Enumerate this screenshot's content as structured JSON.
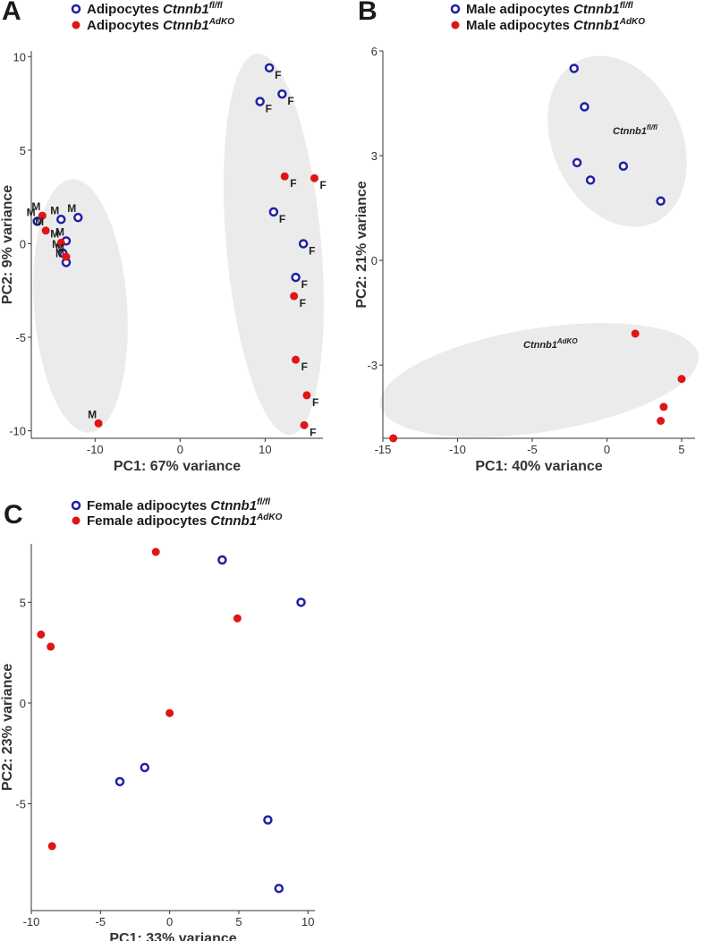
{
  "colors": {
    "wt": "#1f1fa8",
    "ko": "#e01515",
    "ellipse": "#ebebeb",
    "axis": "#333333"
  },
  "chart_data": [
    {
      "panel": "A",
      "type": "scatter",
      "xlabel": "PC1: 67% variance",
      "ylabel": "PC2: 9% variance",
      "xlim": [
        -17.5,
        16.8
      ],
      "ylim": [
        -10.4,
        10.3
      ],
      "xticks": [
        "-10",
        "0",
        "10"
      ],
      "yticks": [
        "10",
        "5",
        "0",
        "-5",
        "-10"
      ],
      "legend": [
        {
          "prefix": "Adipocytes ",
          "gene": "Ctnnb1",
          "sup": "fl/fl",
          "marker": "open"
        },
        {
          "prefix": "Adipocytes ",
          "gene": "Ctnnb1",
          "sup": "AdKO",
          "marker": "filled"
        }
      ],
      "series": [
        {
          "name": "Adipocytes Ctnnb1 fl/fl",
          "marker": "open",
          "points": [
            {
              "x": 10.5,
              "y": 9.4,
              "label": "F"
            },
            {
              "x": 12.0,
              "y": 8.0,
              "label": "F"
            },
            {
              "x": 9.4,
              "y": 7.6,
              "label": "F"
            },
            {
              "x": 11.0,
              "y": 1.7,
              "label": "F"
            },
            {
              "x": 14.5,
              "y": 0.0,
              "label": "F"
            },
            {
              "x": 13.6,
              "y": -1.8,
              "label": "F"
            },
            {
              "x": -14.0,
              "y": 1.3,
              "label": "M"
            },
            {
              "x": -12.0,
              "y": 1.4,
              "label": "M"
            },
            {
              "x": -16.8,
              "y": 1.2,
              "label": "M"
            },
            {
              "x": -13.4,
              "y": 0.15,
              "label": "M"
            },
            {
              "x": -13.8,
              "y": -0.5,
              "label": "M"
            },
            {
              "x": -13.4,
              "y": -1.0,
              "label": "M"
            }
          ]
        },
        {
          "name": "Adipocytes Ctnnb1 AdKO",
          "marker": "filled",
          "points": [
            {
              "x": 12.3,
              "y": 3.6,
              "label": "F"
            },
            {
              "x": 15.8,
              "y": 3.5,
              "label": "F"
            },
            {
              "x": 13.4,
              "y": -2.8,
              "label": "F"
            },
            {
              "x": 13.6,
              "y": -6.2,
              "label": "F"
            },
            {
              "x": 14.9,
              "y": -8.1,
              "label": "F"
            },
            {
              "x": 14.6,
              "y": -9.7,
              "label": "F"
            },
            {
              "x": -16.2,
              "y": 1.5,
              "label": "M"
            },
            {
              "x": -15.8,
              "y": 0.7,
              "label": "M"
            },
            {
              "x": -14.0,
              "y": 0.05,
              "label": "M"
            },
            {
              "x": -13.4,
              "y": -0.7,
              "label": "M"
            },
            {
              "x": -9.6,
              "y": -9.6,
              "label": "M"
            }
          ]
        }
      ]
    },
    {
      "panel": "B",
      "type": "scatter",
      "xlabel": "PC1: 40% variance",
      "ylabel": "PC2: 21% variance",
      "xlim": [
        -15.0,
        5.9
      ],
      "ylim": [
        -5.1,
        6.0
      ],
      "xticks": [
        "-15",
        "-10",
        "-5",
        "0",
        "5"
      ],
      "yticks": [
        "6",
        "3",
        "0",
        "-3"
      ],
      "legend": [
        {
          "prefix": "Male adipocytes ",
          "gene": "Ctnnb1",
          "sup": "fl/fl",
          "marker": "open"
        },
        {
          "prefix": "Male adipocytes ",
          "gene": "Ctnnb1",
          "sup": "AdKO",
          "marker": "filled"
        }
      ],
      "groups": [
        {
          "gene": "Ctnnb1",
          "sup": "fl/fl"
        },
        {
          "gene": "Ctnnb1",
          "sup": "AdKO"
        }
      ],
      "series": [
        {
          "name": "Male adipocytes Ctnnb1 fl/fl",
          "marker": "open",
          "points": [
            {
              "x": -2.2,
              "y": 5.5
            },
            {
              "x": -1.5,
              "y": 4.4
            },
            {
              "x": -2.0,
              "y": 2.8
            },
            {
              "x": -1.1,
              "y": 2.3
            },
            {
              "x": 1.1,
              "y": 2.7
            },
            {
              "x": 3.6,
              "y": 1.7
            }
          ]
        },
        {
          "name": "Male adipocytes Ctnnb1 AdKO",
          "marker": "filled",
          "points": [
            {
              "x": 1.9,
              "y": -2.1
            },
            {
              "x": 5.0,
              "y": -3.4
            },
            {
              "x": 3.8,
              "y": -4.2
            },
            {
              "x": 3.6,
              "y": -4.6
            },
            {
              "x": -14.3,
              "y": -5.1
            }
          ]
        }
      ]
    },
    {
      "panel": "C",
      "type": "scatter",
      "xlabel": "PC1: 33% variance",
      "ylabel": "PC2: 23% variance",
      "xlim": [
        -10.0,
        10.5
      ],
      "ylim": [
        -10.3,
        7.9
      ],
      "xticks": [
        "-10",
        "-5",
        "0",
        "5",
        "10"
      ],
      "yticks": [
        "5",
        "0",
        "-5"
      ],
      "legend": [
        {
          "prefix": "Female adipocytes ",
          "gene": "Ctnnb1",
          "sup": "fl/fl",
          "marker": "open"
        },
        {
          "prefix": "Female adipocytes ",
          "gene": "Ctnnb1",
          "sup": "AdKO",
          "marker": "filled"
        }
      ],
      "series": [
        {
          "name": "Female adipocytes Ctnnb1 fl/fl",
          "marker": "open",
          "points": [
            {
              "x": 3.8,
              "y": 7.1
            },
            {
              "x": 9.5,
              "y": 5.0
            },
            {
              "x": -1.8,
              "y": -3.2
            },
            {
              "x": -3.6,
              "y": -3.9
            },
            {
              "x": 7.1,
              "y": -5.8
            },
            {
              "x": 7.9,
              "y": -9.2
            }
          ]
        },
        {
          "name": "Female adipocytes Ctnnb1 AdKO",
          "marker": "filled",
          "points": [
            {
              "x": -1.0,
              "y": 7.5
            },
            {
              "x": 4.9,
              "y": 4.2
            },
            {
              "x": -9.3,
              "y": 3.4
            },
            {
              "x": -8.6,
              "y": 2.8
            },
            {
              "x": 0.0,
              "y": -0.5
            },
            {
              "x": -8.5,
              "y": -7.1
            }
          ]
        }
      ]
    }
  ]
}
